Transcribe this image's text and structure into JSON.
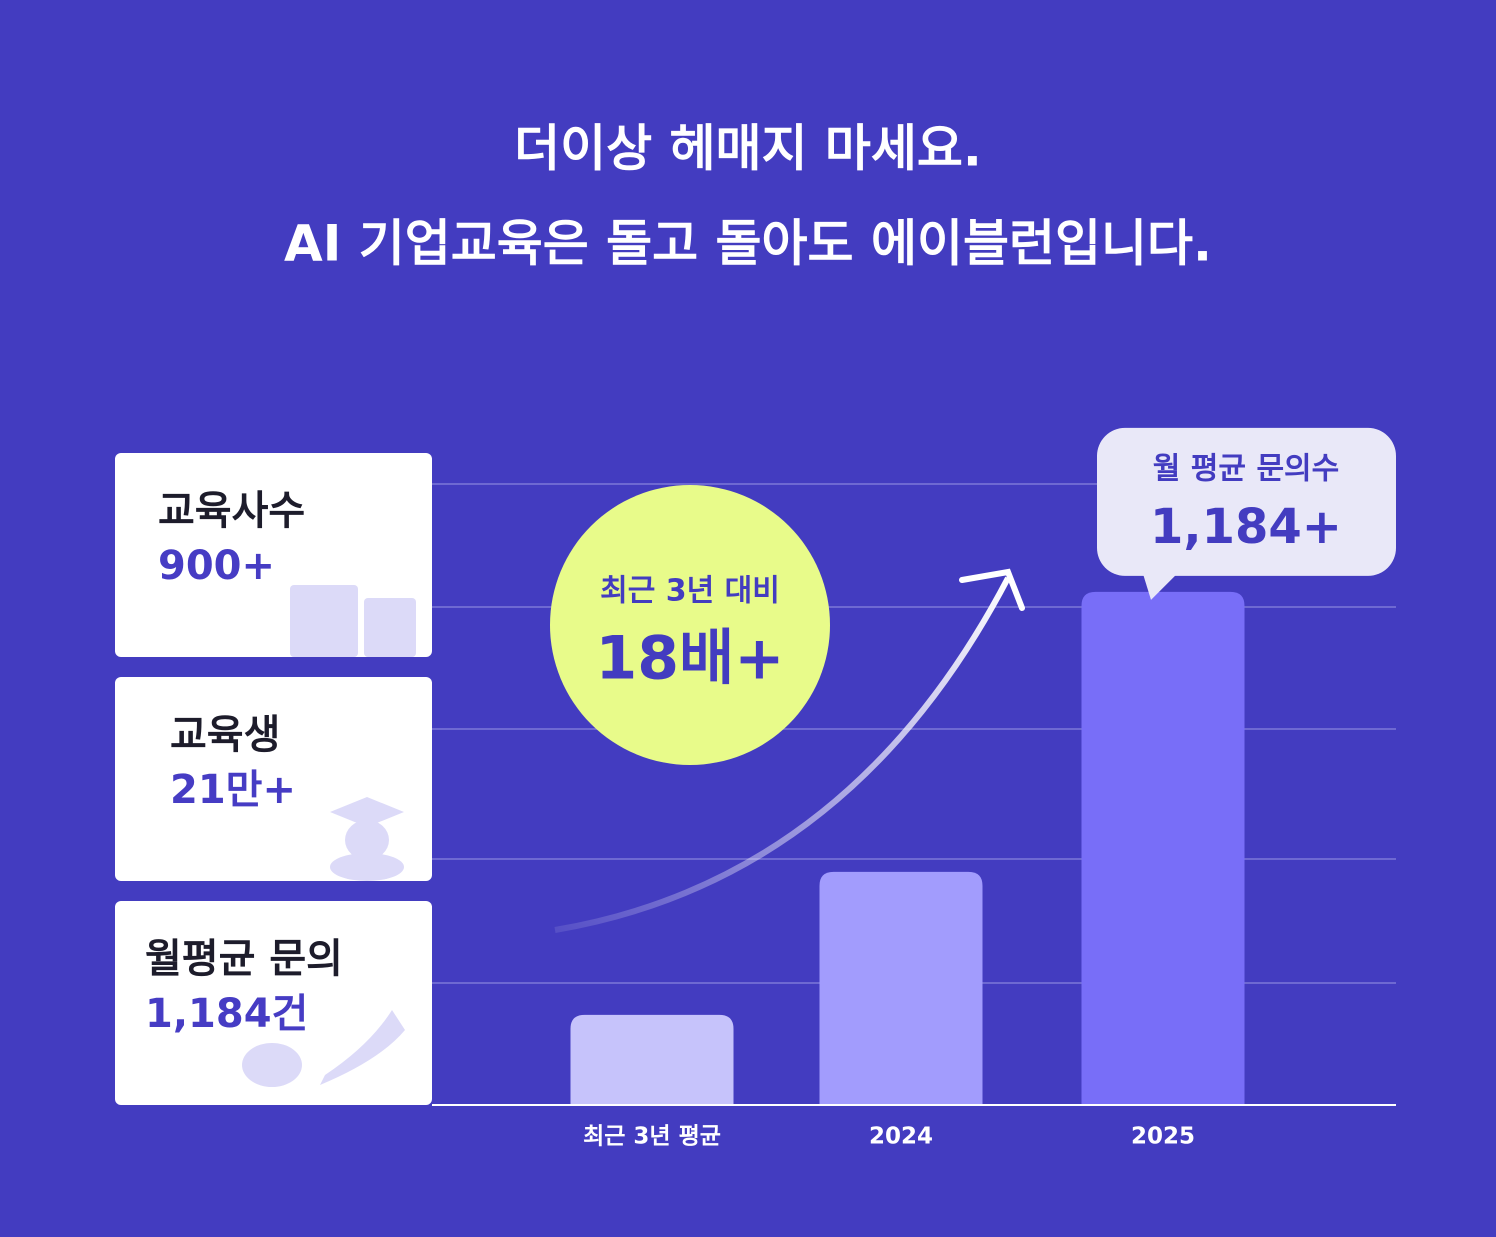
{
  "header": {
    "title_line1": "더이상 헤매지 마세요.",
    "title_line2": "AI 기업교육은 돌고 돌아도 에이블런입니다."
  },
  "cards": [
    {
      "label": "교육사수",
      "value": "900+"
    },
    {
      "label": "교육생",
      "value": "21만+"
    },
    {
      "label": "월평균 문의",
      "value": "1,184건"
    }
  ],
  "badge": {
    "label": "최근 3년 대비",
    "value": "18배+"
  },
  "chart_data": {
    "type": "bar",
    "categories": [
      "최근 3년 평균",
      "2024",
      "2025"
    ],
    "values": [
      208,
      538,
      1184
    ],
    "value_labels": [
      null,
      null,
      "1,184+"
    ],
    "callout_title": "월 평균 문의수",
    "colors": [
      "#c6c3fb",
      "#a29cfd",
      "#786ef8"
    ],
    "ylim": [
      0,
      1433
    ]
  }
}
